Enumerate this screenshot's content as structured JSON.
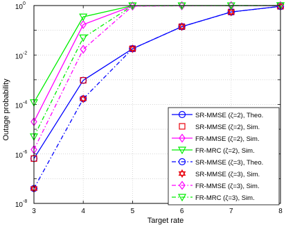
{
  "chart_data": {
    "type": "line",
    "xlabel": "Target rate",
    "ylabel": "Outage probability",
    "xlim": [
      3,
      8
    ],
    "ylim": [
      1e-08,
      1
    ],
    "yscale": "log",
    "grid": true,
    "legend_position": "bottom-right",
    "x_ticks": [
      {
        "value": 3,
        "label": "3"
      },
      {
        "value": 4,
        "label": "4"
      },
      {
        "value": 5,
        "label": "5"
      },
      {
        "value": 6,
        "label": "6"
      },
      {
        "value": 7,
        "label": "7"
      },
      {
        "value": 8,
        "label": "8"
      }
    ],
    "y_ticks": [
      {
        "value": 1e-08,
        "base": "10",
        "exp": "-8"
      },
      {
        "value": 1e-06,
        "base": "10",
        "exp": "-6"
      },
      {
        "value": 0.0001,
        "base": "10",
        "exp": "-4"
      },
      {
        "value": 0.01,
        "base": "10",
        "exp": "-2"
      },
      {
        "value": 1,
        "base": "10",
        "exp": "0"
      }
    ],
    "series": [
      {
        "name": "SR-MMSE (ζ=2), Theo.",
        "color": "#0000ff",
        "dash": "solid",
        "marker": "circle",
        "x": [
          3,
          4,
          5,
          6,
          7,
          8
        ],
        "y": [
          6.5e-07,
          0.00095,
          0.018,
          0.14,
          0.55,
          0.93
        ]
      },
      {
        "name": "SR-MMSE (ζ=2), Sim.",
        "color": "#e8000b",
        "dash": "none",
        "marker": "square",
        "x": [
          3,
          4,
          5,
          6,
          7,
          8
        ],
        "y": [
          6.5e-07,
          0.00095,
          0.018,
          0.14,
          0.55,
          0.93
        ]
      },
      {
        "name": "FR-MMSE (ζ=2), Sim.",
        "color": "#ff00ff",
        "dash": "solid",
        "marker": "diamond",
        "x": [
          3,
          4,
          5,
          6,
          7,
          8
        ],
        "y": [
          2e-05,
          0.17,
          0.96,
          0.985,
          0.99,
          0.995
        ]
      },
      {
        "name": "FR-MRC (ζ=2), Sim.",
        "color": "#00ee00",
        "dash": "solid",
        "marker": "triangle-down",
        "x": [
          3,
          4,
          5,
          6,
          7,
          8
        ],
        "y": [
          0.00012,
          0.35,
          0.99,
          0.995,
          0.997,
          0.999
        ]
      },
      {
        "name": "SR-MMSE (ζ=3), Theo.",
        "color": "#0000ff",
        "dash": "dashdot",
        "marker": "circle",
        "x": [
          3,
          4,
          5,
          6,
          7,
          8
        ],
        "y": [
          4e-08,
          0.00017,
          0.018,
          0.14,
          0.55,
          0.93
        ]
      },
      {
        "name": "SR-MMSE (ζ=3), Sim.",
        "color": "#e8000b",
        "dash": "none",
        "marker": "hexagram",
        "x": [
          3,
          4,
          5,
          6,
          7,
          8
        ],
        "y": [
          4e-08,
          0.00017,
          0.018,
          0.14,
          0.55,
          0.93
        ]
      },
      {
        "name": "FR-MMSE (ζ=3), Sim.",
        "color": "#ff00ff",
        "dash": "dashdot",
        "marker": "diamond",
        "x": [
          3,
          4,
          5,
          6,
          7,
          8
        ],
        "y": [
          1.5e-06,
          0.017,
          0.95,
          0.98,
          0.99,
          0.995
        ]
      },
      {
        "name": "FR-MRC (ζ=3), Sim.",
        "color": "#00ee00",
        "dash": "dashdot",
        "marker": "triangle-down",
        "x": [
          3,
          4,
          5,
          6,
          7,
          8
        ],
        "y": [
          5e-06,
          0.05,
          0.985,
          0.99,
          0.995,
          0.999
        ]
      }
    ]
  }
}
